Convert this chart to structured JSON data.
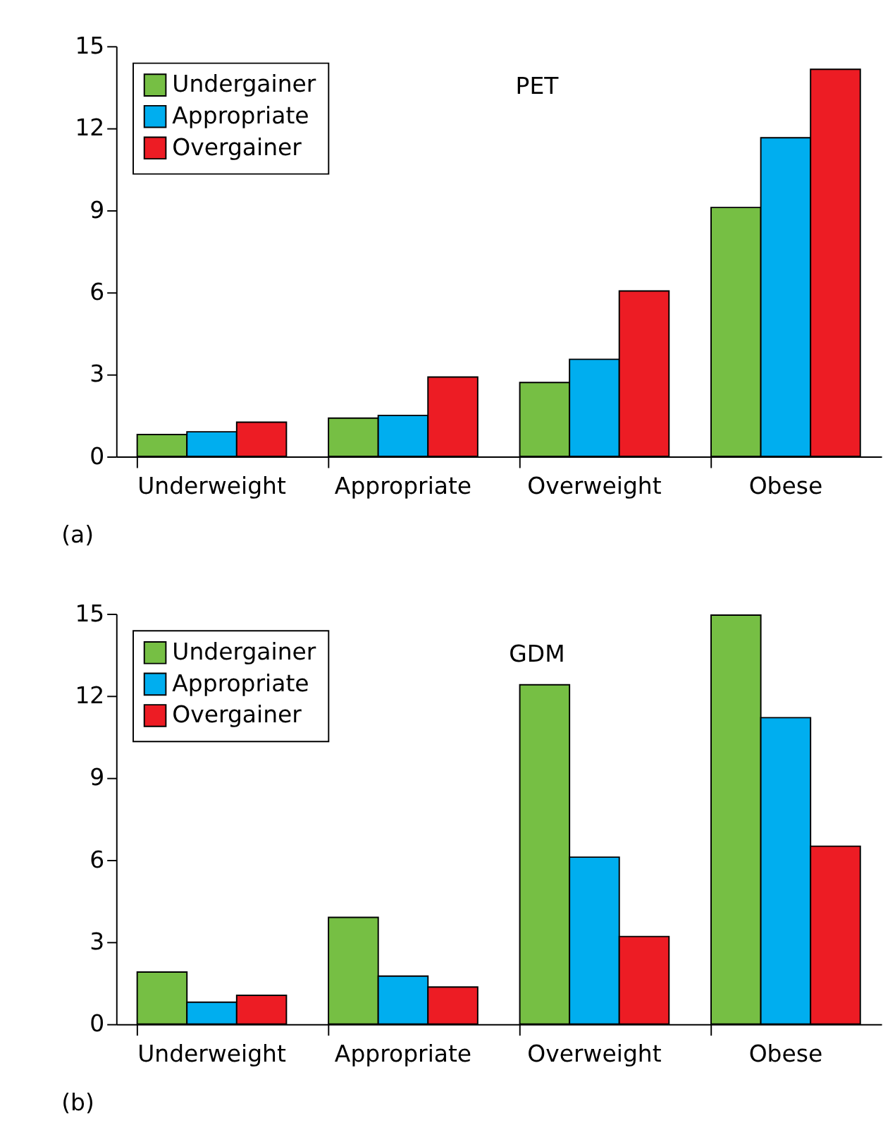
{
  "chart_data": [
    {
      "type": "bar",
      "title": "PET",
      "categories": [
        "Underweight",
        "Appropriate",
        "Overweight",
        "Obese"
      ],
      "series": [
        {
          "name": "Undergainer",
          "color": "#76bf44",
          "values": [
            0.8,
            1.4,
            2.7,
            9.1
          ]
        },
        {
          "name": "Appropriate",
          "color": "#00aeef",
          "values": [
            0.9,
            1.5,
            3.55,
            11.65
          ]
        },
        {
          "name": "Overgainer",
          "color": "#ed1c24",
          "values": [
            1.25,
            2.9,
            6.05,
            14.15
          ]
        }
      ],
      "ylim": [
        0,
        15
      ],
      "yticks": [
        0,
        3,
        6,
        9,
        12,
        15
      ],
      "grid": false,
      "legend": "top left",
      "annotations": [
        "(a)"
      ]
    },
    {
      "type": "bar",
      "title": "GDM",
      "categories": [
        "Underweight",
        "Appropriate",
        "Overweight",
        "Obese"
      ],
      "series": [
        {
          "name": "Undergainer",
          "color": "#76bf44",
          "values": [
            1.9,
            3.9,
            12.4,
            14.95
          ]
        },
        {
          "name": "Appropriate",
          "color": "#00aeef",
          "values": [
            0.8,
            1.75,
            6.1,
            11.2
          ]
        },
        {
          "name": "Overgainer",
          "color": "#ed1c24",
          "values": [
            1.05,
            1.35,
            3.2,
            6.5
          ]
        }
      ],
      "ylim": [
        0,
        15
      ],
      "yticks": [
        0,
        3,
        6,
        9,
        12,
        15
      ],
      "grid": false,
      "legend": "top left",
      "annotations": [
        "(b)"
      ]
    }
  ]
}
